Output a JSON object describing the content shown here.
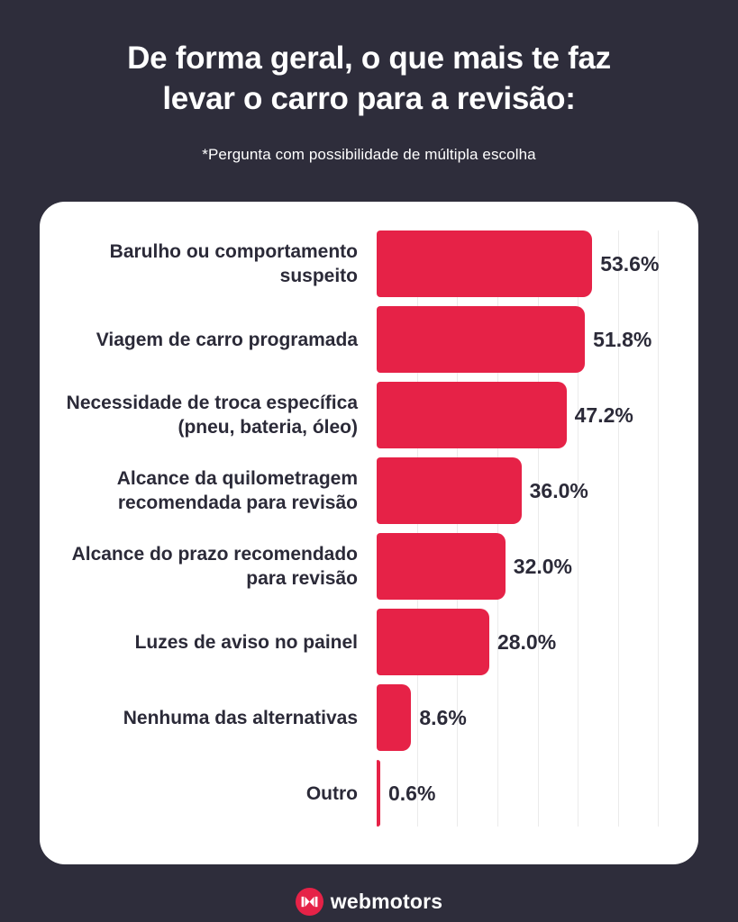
{
  "header": {
    "title_line1": "De forma geral, o que mais te faz",
    "title_line2": "levar o carro para a revisão:",
    "note": "*Pergunta com possibilidade de múltipla escolha"
  },
  "chart_data": {
    "type": "bar",
    "orientation": "horizontal",
    "title": "De forma geral, o que mais te faz levar o carro para a revisão:",
    "subtitle": "*Pergunta com possibilidade de múltipla escolha",
    "categories": [
      "Barulho ou comportamento suspeito",
      "Viagem de carro programada",
      "Necessidade de troca específica (pneu, bateria, óleo)",
      "Alcance da quilometragem recomendada para revisão",
      "Alcance do prazo recomendado para revisão",
      "Luzes de aviso no painel",
      "Nenhuma das alternativas",
      "Outro"
    ],
    "values": [
      53.6,
      51.8,
      47.2,
      36.0,
      32.0,
      28.0,
      8.6,
      0.6
    ],
    "value_labels": [
      "53.6%",
      "51.8%",
      "47.2%",
      "36.0%",
      "32.0%",
      "28.0%",
      "8.6%",
      "0.6%"
    ],
    "unit": "%",
    "xlabel": "",
    "ylabel": "",
    "xlim": [
      0,
      80
    ],
    "gridline_step": 10,
    "grid": true,
    "legend": false,
    "bar_color": "#e62247"
  },
  "footer": {
    "brand": "webmotors"
  },
  "colors": {
    "background": "#2e2d3b",
    "card": "#ffffff",
    "bar": "#e62247",
    "text_dark": "#2b2a38",
    "text_light": "#ffffff",
    "gridline": "#ebebeb",
    "logo_circle": "#e62247"
  }
}
